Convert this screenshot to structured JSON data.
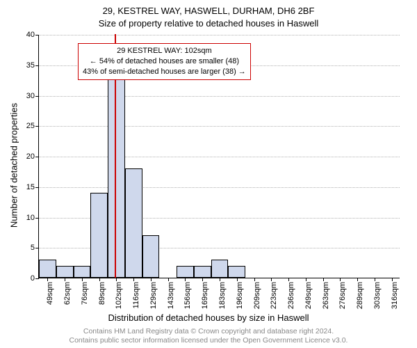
{
  "titles": {
    "line1": "29, KESTREL WAY, HASWELL, DURHAM, DH6 2BF",
    "line2": "Size of property relative to detached houses in Haswell"
  },
  "axes": {
    "ylabel": "Number of detached properties",
    "xlabel": "Distribution of detached houses by size in Haswell"
  },
  "footnote": {
    "line1": "Contains HM Land Registry data © Crown copyright and database right 2024.",
    "line2": "Contains public sector information licensed under the Open Government Licence v3.0."
  },
  "chart": {
    "type": "bar",
    "ylim": [
      0,
      40
    ],
    "ytick_step": 5,
    "yticks": [
      0,
      5,
      10,
      15,
      20,
      25,
      30,
      35,
      40
    ],
    "bar_fill": "#cfd8ec",
    "bar_stroke": "#000000",
    "grid_color": "#b0b0b0",
    "background_color": "#ffffff",
    "marker_color": "#cc0000",
    "marker_x": 102,
    "bin_start": 42.5,
    "bin_width": 13.5,
    "n_bins": 21,
    "label_fontsize": 13,
    "tick_fontsize": 11,
    "bars": [
      {
        "center": 49,
        "label": "49sqm",
        "value": 3
      },
      {
        "center": 62,
        "label": "62sqm",
        "value": 2
      },
      {
        "center": 76,
        "label": "76sqm",
        "value": 2
      },
      {
        "center": 89,
        "label": "89sqm",
        "value": 14
      },
      {
        "center": 102,
        "label": "102sqm",
        "value": 35
      },
      {
        "center": 116,
        "label": "116sqm",
        "value": 18
      },
      {
        "center": 129,
        "label": "129sqm",
        "value": 7
      },
      {
        "center": 143,
        "label": "143sqm",
        "value": 0
      },
      {
        "center": 156,
        "label": "156sqm",
        "value": 2
      },
      {
        "center": 169,
        "label": "169sqm",
        "value": 2
      },
      {
        "center": 183,
        "label": "183sqm",
        "value": 3
      },
      {
        "center": 196,
        "label": "196sqm",
        "value": 2
      },
      {
        "center": 209,
        "label": "209sqm",
        "value": 0
      },
      {
        "center": 223,
        "label": "223sqm",
        "value": 0
      },
      {
        "center": 236,
        "label": "236sqm",
        "value": 0
      },
      {
        "center": 249,
        "label": "249sqm",
        "value": 0
      },
      {
        "center": 263,
        "label": "263sqm",
        "value": 0
      },
      {
        "center": 276,
        "label": "276sqm",
        "value": 0
      },
      {
        "center": 289,
        "label": "289sqm",
        "value": 0
      },
      {
        "center": 303,
        "label": "303sqm",
        "value": 0
      },
      {
        "center": 316,
        "label": "316sqm",
        "value": 0
      }
    ]
  },
  "annotation": {
    "line1": "29 KESTREL WAY: 102sqm",
    "line2": "← 54% of detached houses are smaller (48)",
    "line3": "43% of semi-detached houses are larger (38) →",
    "border_color": "#cc0000",
    "fontsize": 11
  }
}
